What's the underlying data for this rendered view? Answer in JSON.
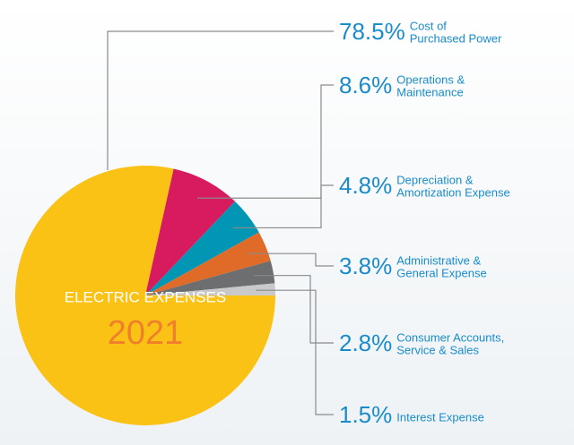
{
  "chart_data": {
    "type": "pie",
    "title": "ELECTRIC EXPENSES",
    "subtitle": "2021",
    "categories": [
      [
        "Cost of",
        "Purchased Power"
      ],
      [
        "Operations &",
        "Maintenance"
      ],
      [
        "Depreciation &",
        "Amortization Expense"
      ],
      [
        "Administrative &",
        "General Expense"
      ],
      [
        "Consumer Accounts,",
        "Service & Sales"
      ],
      [
        "Interest Expense"
      ]
    ],
    "values": [
      78.5,
      8.6,
      4.8,
      3.8,
      2.8,
      1.5
    ],
    "value_labels": [
      "78.5%",
      "8.6%",
      "4.8%",
      "3.8%",
      "2.8%",
      "1.5%"
    ],
    "colors": [
      "#fbc216",
      "#d81b5e",
      "#0096b4",
      "#e06a27",
      "#6d6e70",
      "#c9c9c9"
    ]
  }
}
